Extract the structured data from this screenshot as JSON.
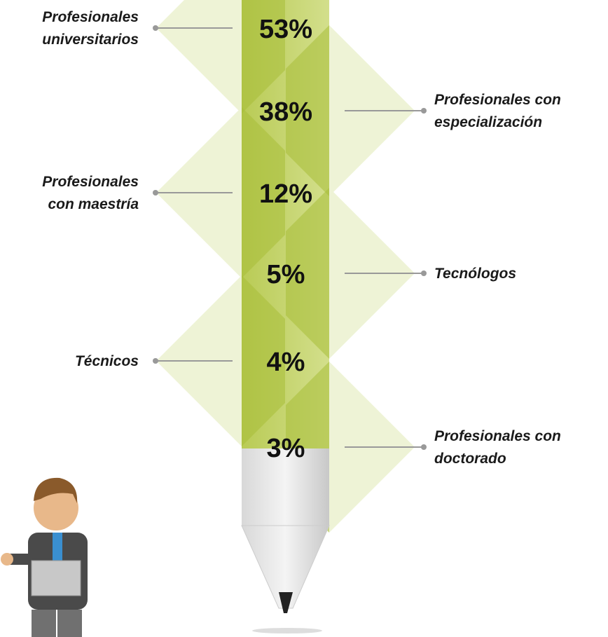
{
  "items": [
    {
      "label": [
        "Profesionales",
        "universitarios"
      ],
      "value": "53%"
    },
    {
      "label": [
        "Profesionales con",
        "especialización"
      ],
      "value": "38%"
    },
    {
      "label": [
        "Profesionales",
        "con maestría"
      ],
      "value": "12%"
    },
    {
      "label": [
        "Tecnólogos"
      ],
      "value": "5%"
    },
    {
      "label": [
        "Técnicos"
      ],
      "value": "4%"
    },
    {
      "label": [
        "Profesionales con",
        "doctorado"
      ],
      "value": "3%"
    }
  ]
}
